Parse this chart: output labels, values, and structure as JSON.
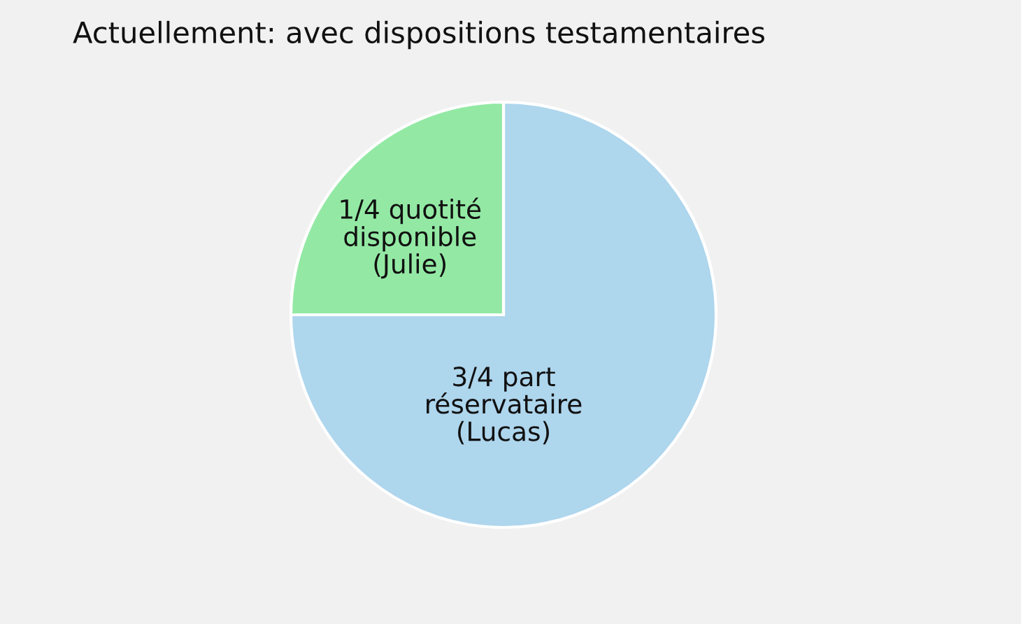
{
  "chart_data": {
    "type": "pie",
    "title": "Actuellement: avec dispositions testamentaires",
    "categories": [
      "3/4 part\nréservataire\n(Lucas)",
      "1/4 quotité\ndisponible\n(Julie)"
    ],
    "values": [
      75,
      25
    ],
    "colors": [
      "#aed6ed",
      "#93e9a4"
    ]
  }
}
